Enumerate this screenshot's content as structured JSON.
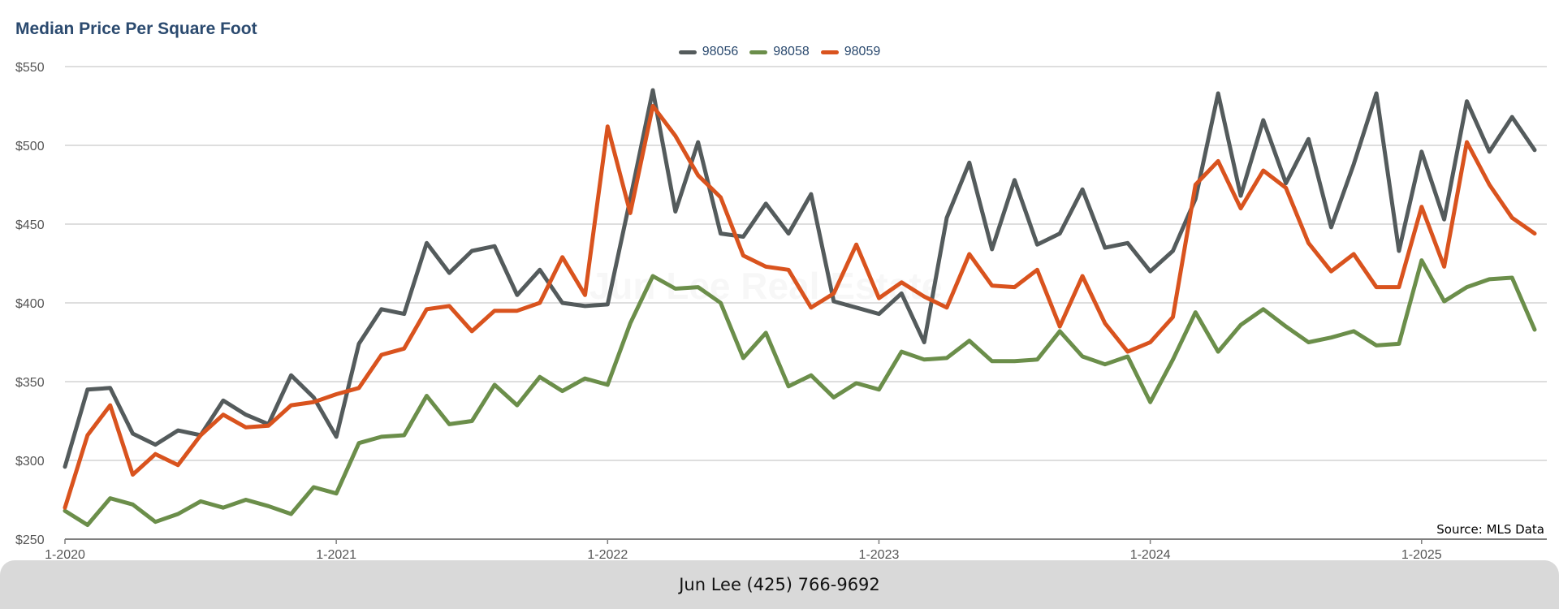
{
  "chart_data": {
    "type": "line",
    "title": "Median Price Per Square Foot",
    "y_ticks": [
      "$550",
      "$500",
      "$450",
      "$400",
      "$350",
      "$300",
      "$250"
    ],
    "x_ticks": [
      "1-2020",
      "1-2021",
      "1-2022",
      "1-2023",
      "1-2024",
      "1-2025"
    ],
    "ylim": [
      250,
      550
    ],
    "x_start": "2020-01",
    "grid": true,
    "legend_position": "top-center",
    "series": [
      {
        "name": "98056",
        "color": "#545b5c",
        "values": [
          296,
          345,
          346,
          317,
          310,
          319,
          316,
          338,
          329,
          323,
          354,
          340,
          315,
          374,
          396,
          393,
          438,
          419,
          433,
          436,
          405,
          421,
          400,
          398,
          399,
          466,
          535,
          458,
          502,
          444,
          442,
          463,
          444,
          469,
          401,
          397,
          393,
          406,
          375,
          454,
          489,
          434,
          478,
          437,
          444,
          472,
          435,
          438,
          420,
          433,
          466,
          533,
          468,
          516,
          476,
          504,
          448,
          488,
          533,
          433,
          496,
          453,
          528,
          496,
          518,
          497
        ]
      },
      {
        "name": "98058",
        "color": "#6b8e4a",
        "values": [
          268,
          259,
          276,
          272,
          261,
          266,
          274,
          270,
          275,
          271,
          266,
          283,
          279,
          311,
          315,
          316,
          341,
          323,
          325,
          348,
          335,
          353,
          344,
          352,
          348,
          387,
          417,
          409,
          410,
          400,
          365,
          381,
          347,
          354,
          340,
          349,
          345,
          369,
          364,
          365,
          376,
          363,
          363,
          364,
          382,
          366,
          361,
          366,
          337,
          364,
          394,
          369,
          386,
          396,
          385,
          375,
          378,
          382,
          373,
          374,
          427,
          401,
          410,
          415,
          416,
          383
        ]
      },
      {
        "name": "98059",
        "color": "#d9531e",
        "values": [
          270,
          316,
          335,
          291,
          304,
          297,
          316,
          329,
          321,
          322,
          335,
          337,
          342,
          346,
          367,
          371,
          396,
          398,
          382,
          395,
          395,
          400,
          429,
          405,
          512,
          457,
          525,
          506,
          481,
          467,
          430,
          423,
          421,
          397,
          406,
          437,
          403,
          413,
          404,
          397,
          431,
          411,
          410,
          421,
          385,
          417,
          387,
          369,
          375,
          391,
          475,
          490,
          460,
          484,
          473,
          438,
          420,
          431,
          410,
          410,
          461,
          423,
          502,
          475,
          454,
          444
        ]
      }
    ]
  },
  "watermark": "Jun Lee Real Estate",
  "source_note": "Source: MLS Data",
  "footer": {
    "contact": "Jun Lee (425) 766-9692"
  }
}
